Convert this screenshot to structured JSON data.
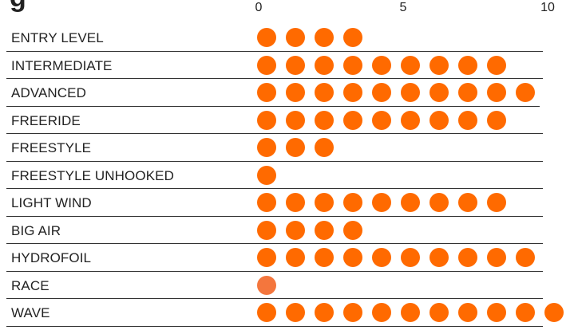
{
  "scale": {
    "ticks": [
      "0",
      "5",
      "10"
    ],
    "tick_values": [
      0,
      5,
      10
    ],
    "max": 10
  },
  "rating_color": "#ff6a00",
  "rows": [
    {
      "label": "ENTRY LEVEL",
      "rating": 4
    },
    {
      "label": "INTERMEDIATE",
      "rating": 9
    },
    {
      "label": "ADVANCED",
      "rating": 10
    },
    {
      "label": "FREERIDE",
      "rating": 9
    },
    {
      "label": "FREESTYLE",
      "rating": 3
    },
    {
      "label": "FREESTYLE UNHOOKED",
      "rating": 1
    },
    {
      "label": "LIGHT WIND",
      "rating": 9
    },
    {
      "label": "BIG AIR",
      "rating": 4
    },
    {
      "label": "HYDROFOIL",
      "rating": 10
    },
    {
      "label": "RACE",
      "rating": 1
    },
    {
      "label": "WAVE",
      "rating": 11
    }
  ]
}
